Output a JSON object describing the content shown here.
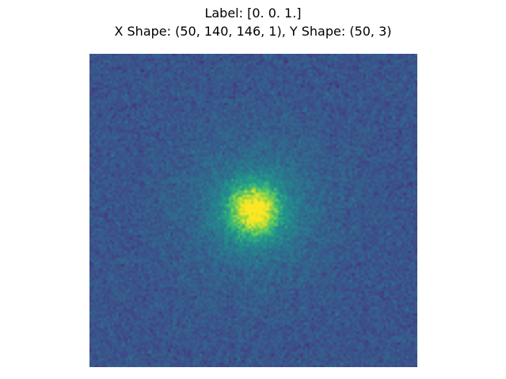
{
  "figure": {
    "title_line_1": "Label: [0. 0. 1.]",
    "title_line_2": "X Shape: (50, 140, 146, 1), Y Shape: (50, 3)"
  },
  "image": {
    "description_shape": [
      140,
      146
    ],
    "colormap": "viridis",
    "colors": {
      "background_low": "#3b528b",
      "background_mid": "#31688e",
      "center_high": "#dde318"
    }
  }
}
